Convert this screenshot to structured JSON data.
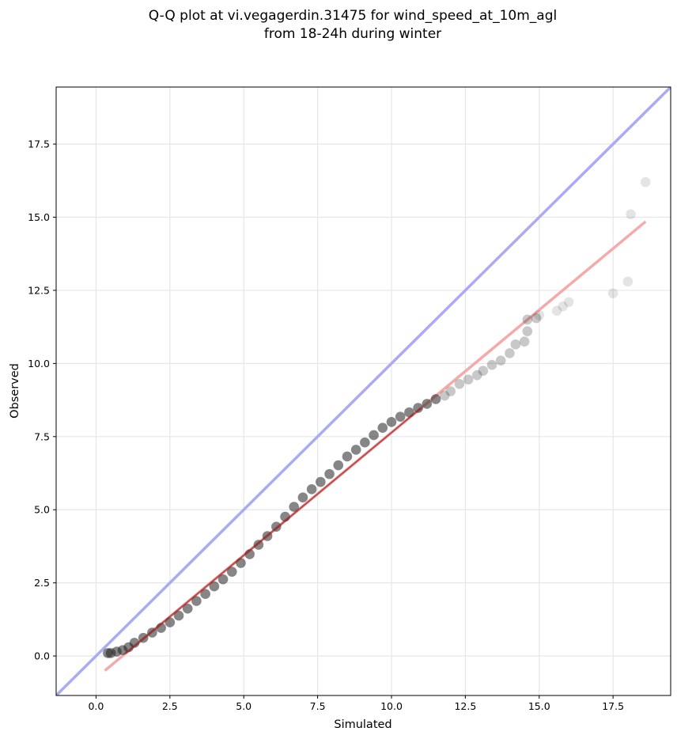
{
  "chart_data": {
    "type": "scatter",
    "title_lines": [
      "Q-Q plot at vi.vegagerdin.31475 for wind_speed_at_10m_agl",
      "from 18-24h during winter"
    ],
    "xlabel": "Simulated",
    "ylabel": "Observed",
    "xlim": [
      -1.35,
      19.45
    ],
    "ylim": [
      -1.35,
      19.45
    ],
    "xticks": [
      0.0,
      2.5,
      5.0,
      7.5,
      10.0,
      12.5,
      15.0,
      17.5
    ],
    "yticks": [
      0.0,
      2.5,
      5.0,
      7.5,
      10.0,
      12.5,
      15.0,
      17.5
    ],
    "xtick_labels": [
      "0.0",
      "2.5",
      "5.0",
      "7.5",
      "10.0",
      "12.5",
      "15.0",
      "17.5"
    ],
    "ytick_labels": [
      "0.0",
      "2.5",
      "5.0",
      "7.5",
      "10.0",
      "12.5",
      "15.0",
      "17.5"
    ],
    "grid": true,
    "identity_line": {
      "color": "#aaaaf5"
    },
    "fit_line": {
      "x": [
        0.3,
        18.6
      ],
      "y": [
        -0.5,
        14.85
      ],
      "color": "#f5aaaa"
    },
    "fit_overlay": {
      "x": [
        1.0,
        11.0
      ],
      "color": "#a02020"
    },
    "marker_color": "#222222",
    "points": [
      [
        0.4,
        0.1
      ],
      [
        0.5,
        0.1
      ],
      [
        0.7,
        0.15
      ],
      [
        0.9,
        0.2
      ],
      [
        1.1,
        0.3
      ],
      [
        1.3,
        0.45
      ],
      [
        1.6,
        0.62
      ],
      [
        1.9,
        0.8
      ],
      [
        2.2,
        0.96
      ],
      [
        2.5,
        1.15
      ],
      [
        2.8,
        1.38
      ],
      [
        3.1,
        1.62
      ],
      [
        3.4,
        1.88
      ],
      [
        3.7,
        2.12
      ],
      [
        4.0,
        2.38
      ],
      [
        4.3,
        2.62
      ],
      [
        4.6,
        2.88
      ],
      [
        4.9,
        3.18
      ],
      [
        5.2,
        3.48
      ],
      [
        5.5,
        3.8
      ],
      [
        5.8,
        4.1
      ],
      [
        6.1,
        4.42
      ],
      [
        6.4,
        4.76
      ],
      [
        6.7,
        5.1
      ],
      [
        7.0,
        5.42
      ],
      [
        7.3,
        5.7
      ],
      [
        7.6,
        5.95
      ],
      [
        7.9,
        6.22
      ],
      [
        8.2,
        6.52
      ],
      [
        8.5,
        6.82
      ],
      [
        8.8,
        7.05
      ],
      [
        9.1,
        7.3
      ],
      [
        9.4,
        7.55
      ],
      [
        9.7,
        7.8
      ],
      [
        10.0,
        8.0
      ],
      [
        10.3,
        8.18
      ],
      [
        10.6,
        8.33
      ],
      [
        10.9,
        8.48
      ],
      [
        11.2,
        8.62
      ],
      [
        11.5,
        8.78
      ],
      [
        11.8,
        8.9
      ],
      [
        12.0,
        9.05
      ],
      [
        12.3,
        9.3
      ],
      [
        12.6,
        9.45
      ],
      [
        12.9,
        9.6
      ],
      [
        13.1,
        9.75
      ],
      [
        13.4,
        9.95
      ],
      [
        13.7,
        10.1
      ],
      [
        14.0,
        10.35
      ],
      [
        14.2,
        10.65
      ],
      [
        14.5,
        10.75
      ],
      [
        14.6,
        11.1
      ],
      [
        14.6,
        11.5
      ],
      [
        14.9,
        11.55
      ],
      [
        15.0,
        11.65
      ],
      [
        15.6,
        11.8
      ],
      [
        15.8,
        11.95
      ],
      [
        16.0,
        12.1
      ],
      [
        17.5,
        12.4
      ],
      [
        18.0,
        12.8
      ],
      [
        18.1,
        15.1
      ],
      [
        18.6,
        16.2
      ]
    ]
  }
}
